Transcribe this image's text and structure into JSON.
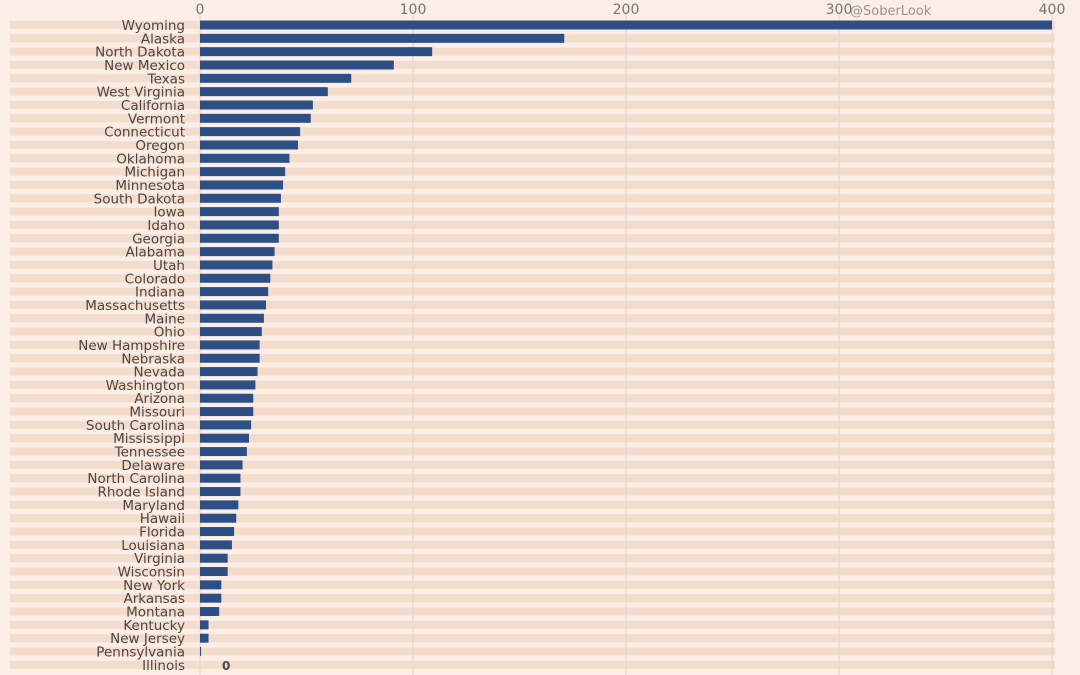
{
  "watermark": "@SoberLook",
  "colors": {
    "background": "#fbeee7",
    "bar": "#2e4f86",
    "stripe": "#f3dccb",
    "grid": "#e4d3c8"
  },
  "chart_data": {
    "type": "bar",
    "orientation": "horizontal",
    "x_ticks": [
      0,
      100,
      200,
      300,
      400
    ],
    "xlim": [
      0,
      400
    ],
    "grid": true,
    "categories": [
      "Wyoming",
      "Alaska",
      "North Dakota",
      "New Mexico",
      "Texas",
      "West Virginia",
      "California",
      "Vermont",
      "Connecticut",
      "Oregon",
      "Oklahoma",
      "Michigan",
      "Minnesota",
      "South Dakota",
      "Iowa",
      "Idaho",
      "Georgia",
      "Alabama",
      "Utah",
      "Colorado",
      "Indiana",
      "Massachusetts",
      "Maine",
      "Ohio",
      "New Hampshire",
      "Nebraska",
      "Nevada",
      "Washington",
      "Arizona",
      "Missouri",
      "South Carolina",
      "Mississippi",
      "Tennessee",
      "Delaware",
      "North Carolina",
      "Rhode Island",
      "Maryland",
      "Hawaii",
      "Florida",
      "Louisiana",
      "Virginia",
      "Wisconsin",
      "New York",
      "Arkansas",
      "Montana",
      "Kentucky",
      "New Jersey",
      "Pennsylvania",
      "Illinois"
    ],
    "values": [
      400,
      171,
      109,
      91,
      71,
      60,
      53,
      52,
      47,
      46,
      42,
      40,
      39,
      38,
      37,
      37,
      37,
      35,
      34,
      33,
      32,
      31,
      30,
      29,
      28,
      28,
      27,
      26,
      25,
      25,
      24,
      23,
      22,
      20,
      19,
      19,
      18,
      17,
      16,
      15,
      13,
      13,
      10,
      10,
      9,
      4,
      4,
      0.5,
      0
    ],
    "value_labels": [
      {
        "category": "Illinois",
        "text": "0"
      }
    ]
  }
}
